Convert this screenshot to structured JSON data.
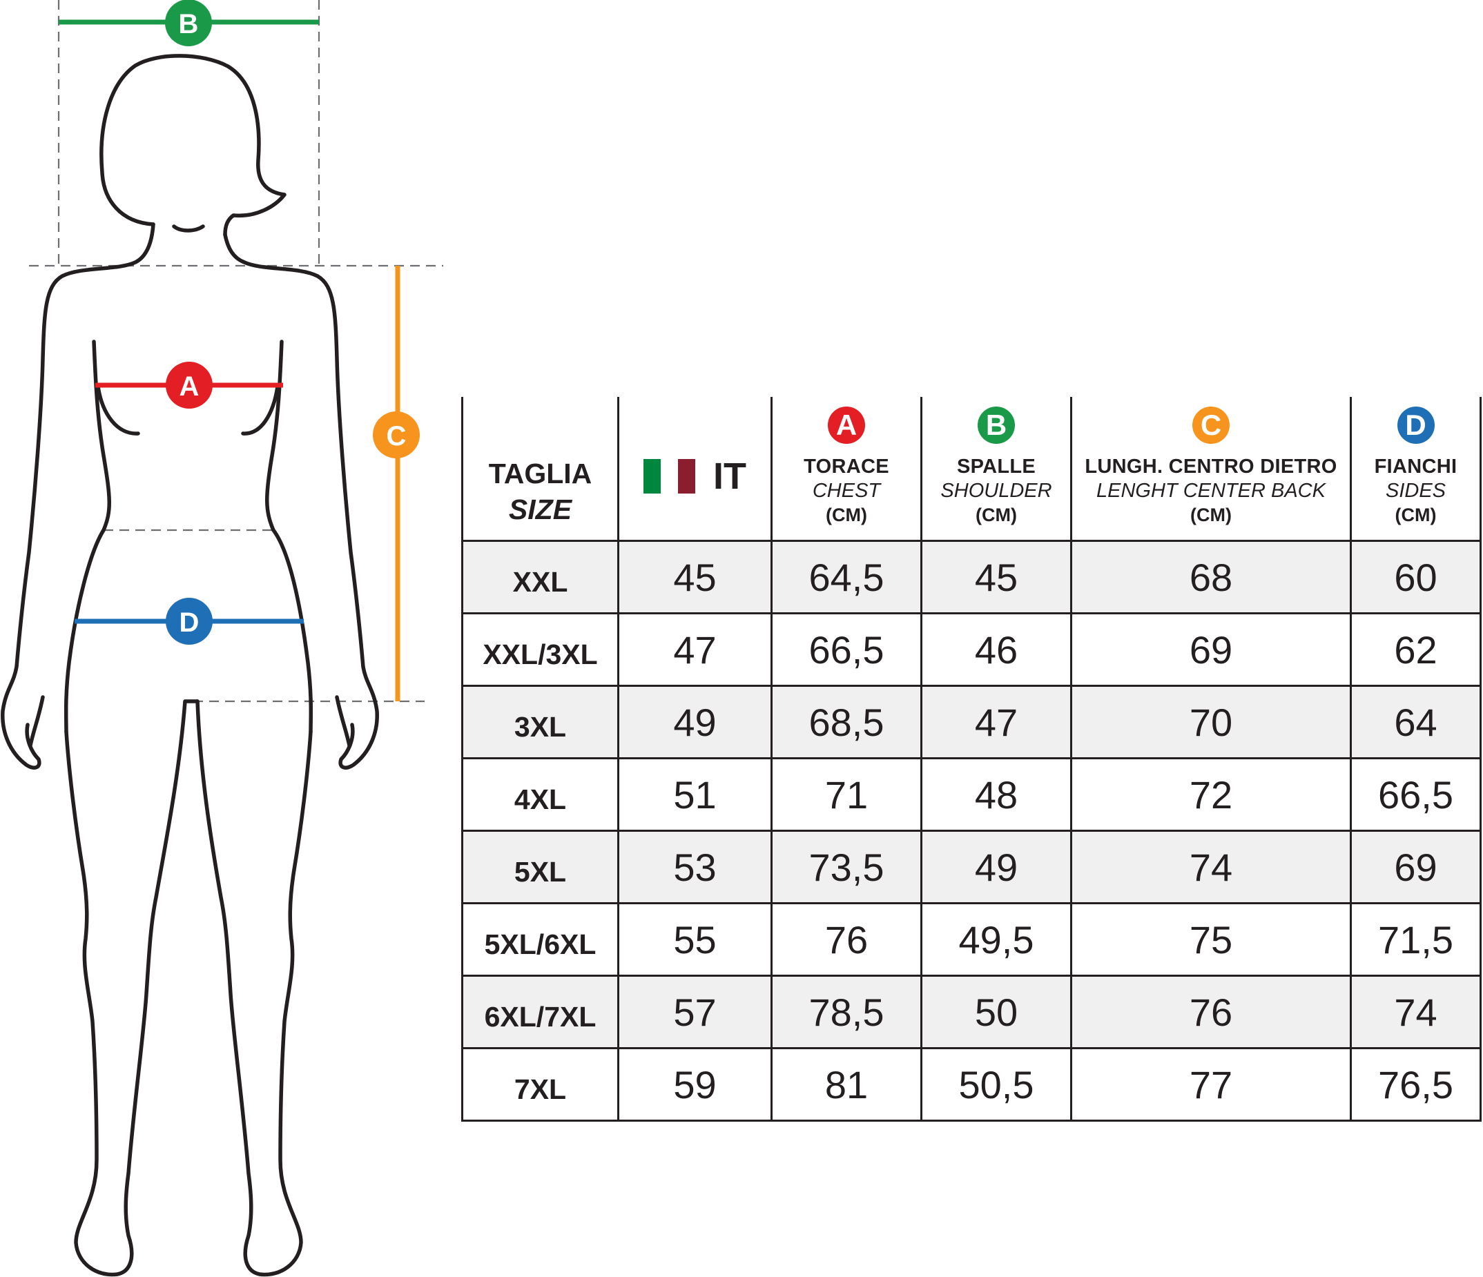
{
  "colors": {
    "A": "#e31e24",
    "B": "#1a9a48",
    "C": "#f7941d",
    "D": "#1f6fb7",
    "flag_green": "#00873e",
    "flag_white": "#ffffff",
    "flag_red": "#8a1e2e"
  },
  "figure": {
    "labels": {
      "A": "A",
      "B": "B",
      "C": "C",
      "D": "D"
    }
  },
  "table": {
    "header": {
      "size_main": "TAGLIA",
      "size_sub": "SIZE",
      "it": "IT",
      "flag_icon": "italy-flag-icon",
      "cols": [
        {
          "badge": "A",
          "line1": "TORACE",
          "line2": "CHEST",
          "unit": "(CM)"
        },
        {
          "badge": "B",
          "line1": "SPALLE",
          "line2": "SHOULDER",
          "unit": "(CM)"
        },
        {
          "badge": "C",
          "line1": "LUNGH. CENTRO DIETRO",
          "line2": "LENGHT CENTER BACK",
          "unit": "(CM)"
        },
        {
          "badge": "D",
          "line1": "FIANCHI",
          "line2": "SIDES",
          "unit": "(CM)"
        }
      ]
    },
    "rows": [
      {
        "size": "XXL",
        "it": "45",
        "chest": "64,5",
        "shoulder": "45",
        "length": "68",
        "sides": "60"
      },
      {
        "size": "XXL/3XL",
        "it": "47",
        "chest": "66,5",
        "shoulder": "46",
        "length": "69",
        "sides": "62"
      },
      {
        "size": "3XL",
        "it": "49",
        "chest": "68,5",
        "shoulder": "47",
        "length": "70",
        "sides": "64"
      },
      {
        "size": "4XL",
        "it": "51",
        "chest": "71",
        "shoulder": "48",
        "length": "72",
        "sides": "66,5"
      },
      {
        "size": "5XL",
        "it": "53",
        "chest": "73,5",
        "shoulder": "49",
        "length": "74",
        "sides": "69"
      },
      {
        "size": "5XL/6XL",
        "it": "55",
        "chest": "76",
        "shoulder": "49,5",
        "length": "75",
        "sides": "71,5"
      },
      {
        "size": "6XL/7XL",
        "it": "57",
        "chest": "78,5",
        "shoulder": "50",
        "length": "76",
        "sides": "74"
      },
      {
        "size": "7XL",
        "it": "59",
        "chest": "81",
        "shoulder": "50,5",
        "length": "77",
        "sides": "76,5"
      }
    ]
  }
}
